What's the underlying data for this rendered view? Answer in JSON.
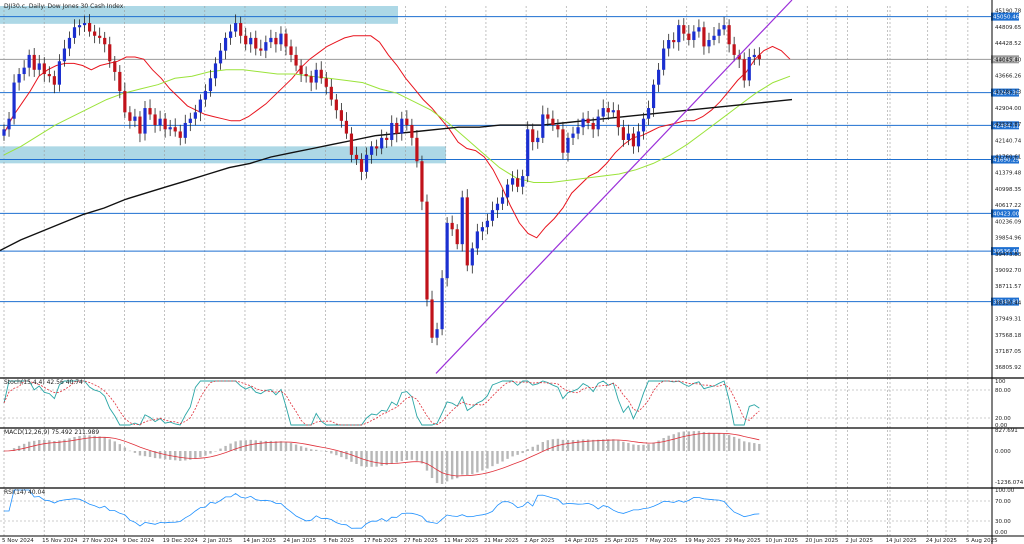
{
  "chart_data": {
    "type": "candlestick",
    "title": "DJI30.c, Daily:  Dow Jones 30 Cash Index",
    "y_axis_ticks": [
      "45190.78",
      "44809.65",
      "44428.52",
      "44045.40",
      "43666.26",
      "43285.13",
      "42904.00",
      "42522.87",
      "42140.74",
      "41760.61",
      "41379.48",
      "40998.35",
      "40617.22",
      "40236.09",
      "39854.96",
      "39473.83",
      "39092.70",
      "38711.57",
      "38330.44",
      "37949.31",
      "37568.18",
      "37187.05",
      "36805.92"
    ],
    "price_highlights": [
      "45050.46",
      "44046.42",
      "43264.36",
      "42494.11",
      "41690.29",
      "40423.00",
      "39536.40",
      "38348.81"
    ],
    "x_axis_labels": [
      "5 Nov 2024",
      "15 Nov 2024",
      "27 Nov 2024",
      "9 Dec 2024",
      "19 Dec 2024",
      "2 Jan 2025",
      "14 Jan 2025",
      "24 Jan 2025",
      "5 Feb 2025",
      "17 Feb 2025",
      "27 Feb 2025",
      "11 Mar 2025",
      "21 Mar 2025",
      "2 Apr 2025",
      "14 Apr 2025",
      "25 Apr 2025",
      "7 May 2025",
      "19 May 2025",
      "29 May 2025",
      "10 Jun 2025",
      "20 Jun 2025",
      "2 Jul 2025",
      "14 Jul 2025",
      "24 Jul 2025",
      "5 Aug 2025"
    ],
    "price_range": [
      36600,
      45300
    ],
    "series": [
      {
        "name": "Close",
        "values": [
          42400,
          42650,
          43500,
          43700,
          43850,
          44150,
          43800,
          43950,
          43700,
          43650,
          43450,
          44000,
          44300,
          44550,
          44800,
          44850,
          44900,
          44700,
          44600,
          44550,
          44400,
          44000,
          43750,
          43300,
          42800,
          42600,
          42700,
          42300,
          42900,
          42750,
          42500,
          42650,
          42400,
          42450,
          42350,
          42200,
          42550,
          42650,
          42800,
          43100,
          43300,
          43600,
          43950,
          44250,
          44550,
          44700,
          44900,
          44600,
          44400,
          44550,
          44300,
          44250,
          44450,
          44550,
          44400,
          44650,
          44350,
          44150,
          43900,
          43700,
          43650,
          43500,
          43800,
          43600,
          43400,
          43100,
          42850,
          42600,
          42300,
          41800,
          41700,
          41400,
          41800,
          42000,
          41950,
          42200,
          42150,
          42550,
          42300,
          42650,
          42500,
          42200,
          41650,
          40700,
          38400,
          37500,
          37700,
          38900,
          40200,
          40050,
          39700,
          40800,
          39200,
          39600,
          40000,
          40100,
          40250,
          40500,
          40650,
          40800,
          41100,
          41250,
          41050,
          41300,
          42400,
          42100,
          42200,
          42750,
          42650,
          42500,
          42400,
          41850,
          42200,
          42300,
          42450,
          42650,
          42550,
          42400,
          42700,
          42900,
          42800,
          42850,
          42450,
          42150,
          42300,
          42000,
          42350,
          42650,
          42900,
          43450,
          43800,
          44300,
          44500,
          44450,
          44850,
          44650,
          44500,
          44700,
          44800,
          44350,
          44500,
          44600,
          44750,
          44850,
          44400,
          44150,
          44050,
          43550,
          44100,
          44150,
          44050
        ]
      },
      {
        "name": "MA 20",
        "values": [
          42300,
          42700,
          43000,
          43300,
          43650,
          43800,
          43900,
          43950,
          43950,
          43900,
          43800,
          43900,
          43950,
          44000,
          44100,
          44100,
          44050,
          43800,
          43600,
          43350,
          43150,
          42950,
          42850,
          42750,
          42700,
          42650,
          42600,
          42600,
          42700,
          42850,
          43000,
          43200,
          43400,
          43600,
          43850,
          44050,
          44200,
          44350,
          44450,
          44550,
          44600,
          44600,
          44600,
          44450,
          44150,
          43900,
          43600,
          43350,
          43100,
          42900,
          42650,
          42400,
          42100,
          41950,
          41900,
          41750,
          41450,
          41050,
          40600,
          40200,
          39950,
          39850,
          40100,
          40300,
          40550,
          40900,
          41100,
          41300,
          41400,
          41600,
          41850,
          42050,
          42200,
          42250,
          42350,
          42450,
          42500,
          42550,
          42600,
          42600,
          42700,
          42850,
          43050,
          43300,
          43550,
          43750,
          44050,
          44250,
          44350,
          44250,
          44050
        ]
      },
      {
        "name": "MA 50",
        "values": [
          41800,
          42000,
          42250,
          42500,
          42700,
          42900,
          43100,
          43250,
          43350,
          43450,
          43600,
          43650,
          43750,
          43800,
          43800,
          43750,
          43700,
          43700,
          43650,
          43600,
          43550,
          43500,
          43350,
          43250,
          43050,
          42850,
          42550,
          42200,
          41850,
          41500,
          41250,
          41150,
          41150,
          41200,
          41250,
          41300,
          41350,
          41450,
          41600,
          41800,
          42050,
          42350,
          42650,
          42950,
          43250,
          43500,
          43650
        ]
      },
      {
        "name": "MA 200",
        "values": [
          39550,
          39800,
          40000,
          40200,
          40400,
          40550,
          40750,
          40900,
          41050,
          41200,
          41350,
          41500,
          41600,
          41750,
          41850,
          41950,
          42050,
          42150,
          42250,
          42300,
          42350,
          42400,
          42450,
          42450,
          42500,
          42500,
          42500,
          42550,
          42600,
          42650,
          42700,
          42750,
          42800,
          42850,
          42900,
          42950,
          43000,
          43050,
          43100
        ]
      }
    ],
    "stochastic": {
      "label": "Stoch(15,4,4) 42.56 40.74",
      "levels": [
        "100",
        "80.00",
        "20.00",
        "0.00"
      ],
      "value": 42.56
    },
    "macd": {
      "label": "MACD(12,26,9) 75.492 211.989",
      "levels": [
        "827.691",
        "0.000",
        "-1236.074"
      ],
      "value": 75.492
    },
    "rsi": {
      "label": "RSI(14) 40.04",
      "levels": [
        "100.00",
        "70.00",
        "30.00",
        "0.00"
      ],
      "value": 40.04
    }
  }
}
